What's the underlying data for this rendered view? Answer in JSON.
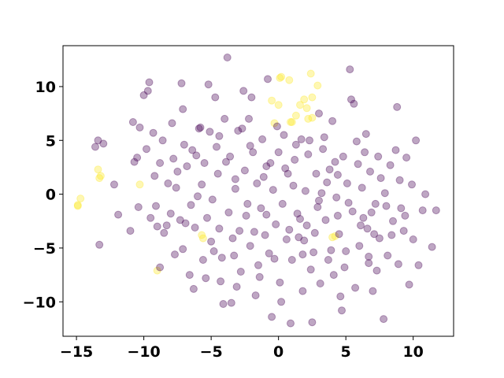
{
  "chart_data": {
    "type": "scatter",
    "title": "",
    "xlabel": "",
    "ylabel": "",
    "xlim": [
      -16,
      13
    ],
    "ylim": [
      -13.2,
      13.8
    ],
    "grid": false,
    "legend": "none",
    "x_ticks": [
      -15,
      -10,
      -5,
      0,
      5,
      10
    ],
    "y_ticks": [
      -10,
      -5,
      0,
      5,
      10
    ],
    "x_tick_labels": [
      "−15",
      "−10",
      "−5",
      "0",
      "5",
      "10"
    ],
    "y_tick_labels": [
      "−10",
      "−5",
      "0",
      "5",
      "10"
    ],
    "colors": {
      "class_0": "#440154",
      "class_1": "#fde725"
    },
    "marker_alpha": 0.35,
    "series": [
      {
        "class": "class_1",
        "points": [
          [
            0.1,
            10.8
          ],
          [
            0.2,
            10.9
          ],
          [
            0.8,
            10.6
          ],
          [
            2.4,
            11.2
          ],
          [
            2.9,
            10.1
          ],
          [
            -0.5,
            8.7
          ],
          [
            0.0,
            8.3
          ],
          [
            1.6,
            8.3
          ],
          [
            1.9,
            8.8
          ],
          [
            2.5,
            9.0
          ],
          [
            2.1,
            8.0
          ],
          [
            1.3,
            7.3
          ],
          [
            2.2,
            7.0
          ],
          [
            -0.3,
            6.6
          ],
          [
            0.9,
            6.7
          ],
          [
            2.5,
            7.1
          ],
          [
            1.0,
            6.7
          ],
          [
            -13.4,
            2.3
          ],
          [
            -13.2,
            1.7
          ],
          [
            -13.3,
            1.5
          ],
          [
            -10.3,
            0.9
          ],
          [
            -14.7,
            -0.4
          ],
          [
            -14.9,
            -1.0
          ],
          [
            -14.9,
            -1.1
          ],
          [
            -9.0,
            -7.1
          ],
          [
            -5.7,
            -3.8
          ],
          [
            -5.6,
            -4.1
          ],
          [
            4.0,
            -4.0
          ],
          [
            4.2,
            -3.9
          ]
        ]
      },
      {
        "class": "class_0",
        "points": [
          [
            -13.6,
            4.4
          ],
          [
            -13.4,
            5.0
          ],
          [
            -13.0,
            4.7
          ],
          [
            -12.2,
            0.9
          ],
          [
            -11.9,
            -1.9
          ],
          [
            -11.0,
            -3.4
          ],
          [
            -10.8,
            6.7
          ],
          [
            -10.3,
            6.2
          ],
          [
            -10.5,
            3.4
          ],
          [
            -10.4,
            -1.2
          ],
          [
            -10.0,
            9.2
          ],
          [
            -9.6,
            10.4
          ],
          [
            -9.7,
            9.6
          ],
          [
            -9.3,
            5.7
          ],
          [
            -9.2,
            1.7
          ],
          [
            -9.1,
            -1.1
          ],
          [
            -9.0,
            -3.0
          ],
          [
            -8.8,
            2.9
          ],
          [
            -8.5,
            -3.6
          ],
          [
            -8.3,
            -2.9
          ],
          [
            -8.8,
            -6.8
          ],
          [
            -7.9,
            6.6
          ],
          [
            -7.8,
            3.3
          ],
          [
            -7.6,
            0.6
          ],
          [
            -7.3,
            -2.4
          ],
          [
            -7.1,
            7.9
          ],
          [
            -7.0,
            4.6
          ],
          [
            -7.1,
            -5.1
          ],
          [
            -6.6,
            -7.5
          ],
          [
            -6.8,
            2.6
          ],
          [
            -6.5,
            -1.0
          ],
          [
            -6.3,
            -8.8
          ],
          [
            -6.2,
            -3.1
          ],
          [
            -5.9,
            6.1
          ],
          [
            -5.7,
            0.9
          ],
          [
            -5.6,
            -6.1
          ],
          [
            -5.5,
            2.9
          ],
          [
            -5.4,
            -7.8
          ],
          [
            -5.2,
            10.2
          ],
          [
            -5.1,
            5.8
          ],
          [
            -4.9,
            -0.5
          ],
          [
            -4.8,
            -5.3
          ],
          [
            -4.7,
            9.0
          ],
          [
            -4.6,
            4.4
          ],
          [
            -4.5,
            1.9
          ],
          [
            -4.4,
            -3.2
          ],
          [
            -4.3,
            -8.1
          ],
          [
            -4.1,
            -10.2
          ],
          [
            -4.0,
            7.0
          ],
          [
            -3.8,
            12.7
          ],
          [
            -3.7,
            -1.7
          ],
          [
            -3.6,
            3.5
          ],
          [
            -3.5,
            -10.1
          ],
          [
            -3.3,
            -5.7
          ],
          [
            -3.2,
            0.5
          ],
          [
            -3.0,
            5.9
          ],
          [
            -2.9,
            -3.4
          ],
          [
            -2.8,
            -7.2
          ],
          [
            -2.6,
            9.6
          ],
          [
            -2.5,
            2.2
          ],
          [
            -2.3,
            -0.9
          ],
          [
            -2.2,
            7.0
          ],
          [
            -2.1,
            -4.8
          ],
          [
            -1.9,
            3.9
          ],
          [
            -1.7,
            -9.4
          ],
          [
            -1.6,
            1.0
          ],
          [
            -1.5,
            -6.6
          ],
          [
            -1.3,
            -1.3
          ],
          [
            -1.2,
            5.1
          ],
          [
            -1.0,
            -3.8
          ],
          [
            -0.9,
            2.6
          ],
          [
            -0.8,
            10.7
          ],
          [
            -0.7,
            -5.5
          ],
          [
            -0.5,
            -11.4
          ],
          [
            -0.4,
            0.4
          ],
          [
            -0.2,
            -2.8
          ],
          [
            0.0,
            3.9
          ],
          [
            0.1,
            -8.2
          ],
          [
            0.3,
            -0.9
          ],
          [
            0.4,
            5.5
          ],
          [
            0.6,
            -4.2
          ],
          [
            0.7,
            1.9
          ],
          [
            0.9,
            -12.0
          ],
          [
            1.0,
            -6.1
          ],
          [
            1.2,
            3.2
          ],
          [
            1.4,
            -1.8
          ],
          [
            1.5,
            -4.0
          ],
          [
            1.7,
            5.1
          ],
          [
            1.8,
            -9.0
          ],
          [
            2.0,
            0.3
          ],
          [
            2.1,
            -2.9
          ],
          [
            2.3,
            5.0
          ],
          [
            2.5,
            -11.9
          ],
          [
            2.6,
            -5.4
          ],
          [
            2.8,
            1.9
          ],
          [
            3.0,
            -0.6
          ],
          [
            3.1,
            -8.3
          ],
          [
            3.3,
            4.2
          ],
          [
            3.5,
            -2.4
          ],
          [
            3.7,
            -6.1
          ],
          [
            3.8,
            2.3
          ],
          [
            4.0,
            6.8
          ],
          [
            4.1,
            -7.5
          ],
          [
            4.3,
            -0.3
          ],
          [
            4.5,
            -3.7
          ],
          [
            4.7,
            -10.8
          ],
          [
            4.8,
            3.5
          ],
          [
            5.0,
            -5.3
          ],
          [
            5.1,
            1.0
          ],
          [
            5.3,
            11.6
          ],
          [
            5.4,
            8.8
          ],
          [
            5.5,
            -1.6
          ],
          [
            5.7,
            -8.7
          ],
          [
            5.8,
            4.9
          ],
          [
            6.0,
            -4.8
          ],
          [
            6.2,
            0.6
          ],
          [
            6.3,
            -2.2
          ],
          [
            6.5,
            5.6
          ],
          [
            6.7,
            -6.4
          ],
          [
            6.8,
            2.1
          ],
          [
            7.0,
            -9.0
          ],
          [
            7.2,
            -0.9
          ],
          [
            7.4,
            3.5
          ],
          [
            7.5,
            -4.1
          ],
          [
            7.8,
            -11.6
          ],
          [
            7.9,
            0.1
          ],
          [
            8.1,
            -5.7
          ],
          [
            8.3,
            2.7
          ],
          [
            8.5,
            -2.5
          ],
          [
            8.8,
            8.1
          ],
          [
            8.9,
            -6.5
          ],
          [
            9.1,
            -1.3
          ],
          [
            9.3,
            -3.4
          ],
          [
            9.5,
            3.4
          ],
          [
            9.7,
            -8.4
          ],
          [
            9.9,
            0.9
          ],
          [
            10.2,
            5.0
          ],
          [
            10.4,
            -6.6
          ],
          [
            10.7,
            -1.5
          ],
          [
            10.9,
            0.0
          ],
          [
            11.4,
            -4.9
          ],
          [
            11.7,
            -1.5
          ],
          [
            -13.3,
            -4.7
          ],
          [
            -7.2,
            10.3
          ],
          [
            -5.8,
            6.2
          ],
          [
            -3.2,
            1.4
          ],
          [
            -2.1,
            4.5
          ],
          [
            -0.9,
            -1.9
          ],
          [
            0.5,
            2.4
          ],
          [
            1.9,
            -4.3
          ],
          [
            2.7,
            -3.6
          ],
          [
            3.6,
            1.1
          ],
          [
            4.4,
            -2.0
          ],
          [
            6.6,
            -3.2
          ],
          [
            7.6,
            1.5
          ],
          [
            8.4,
            -3.8
          ],
          [
            -6.0,
            -0.2
          ],
          [
            -4.2,
            -5.9
          ],
          [
            -1.4,
            -7.7
          ],
          [
            0.8,
            -3.3
          ],
          [
            2.2,
            3.7
          ],
          [
            3.9,
            -5.2
          ],
          [
            5.9,
            2.8
          ],
          [
            6.9,
            -1.7
          ],
          [
            9.0,
            1.3
          ],
          [
            -8.2,
            1.0
          ],
          [
            -6.9,
            -2.7
          ],
          [
            -3.9,
            3.0
          ],
          [
            -2.4,
            -2.0
          ],
          [
            -0.1,
            6.3
          ],
          [
            1.1,
            0.8
          ],
          [
            2.9,
            -1.2
          ],
          [
            4.9,
            -6.8
          ],
          [
            7.3,
            -7.1
          ],
          [
            10.0,
            -4.2
          ],
          [
            -9.8,
            4.2
          ],
          [
            -7.5,
            2.1
          ],
          [
            -5.3,
            -2.2
          ],
          [
            -3.4,
            -4.1
          ],
          [
            -1.1,
            1.6
          ],
          [
            1.6,
            -2.3
          ],
          [
            3.4,
            5.3
          ],
          [
            5.2,
            -0.8
          ],
          [
            6.4,
            3.9
          ],
          [
            8.0,
            -1.1
          ],
          [
            -8.6,
            5.0
          ],
          [
            -6.4,
            4.1
          ],
          [
            -4.4,
            5.4
          ],
          [
            -2.7,
            6.1
          ],
          [
            -1.8,
            -3.5
          ],
          [
            -0.3,
            -6.0
          ],
          [
            1.3,
            4.6
          ],
          [
            3.2,
            0.1
          ],
          [
            4.6,
            -9.5
          ],
          [
            6.1,
            -2.9
          ],
          [
            -9.5,
            -2.2
          ],
          [
            -7.7,
            -5.6
          ],
          [
            -5.0,
            -4.4
          ],
          [
            -2.0,
            9.0
          ],
          [
            0.2,
            -10.0
          ],
          [
            2.4,
            -7.0
          ],
          [
            4.2,
            3.0
          ],
          [
            5.6,
            8.4
          ],
          [
            7.1,
            -3.7
          ],
          [
            9.4,
            -2.0
          ],
          [
            -10.7,
            3.0
          ],
          [
            -8.0,
            -1.8
          ],
          [
            -6.1,
            3.6
          ],
          [
            -3.1,
            -8.6
          ],
          [
            -0.6,
            2.9
          ],
          [
            1.8,
            -5.6
          ],
          [
            3.0,
            7.5
          ],
          [
            4.4,
            1.8
          ],
          [
            6.7,
            -5.8
          ],
          [
            8.7,
            4.1
          ]
        ]
      }
    ]
  }
}
